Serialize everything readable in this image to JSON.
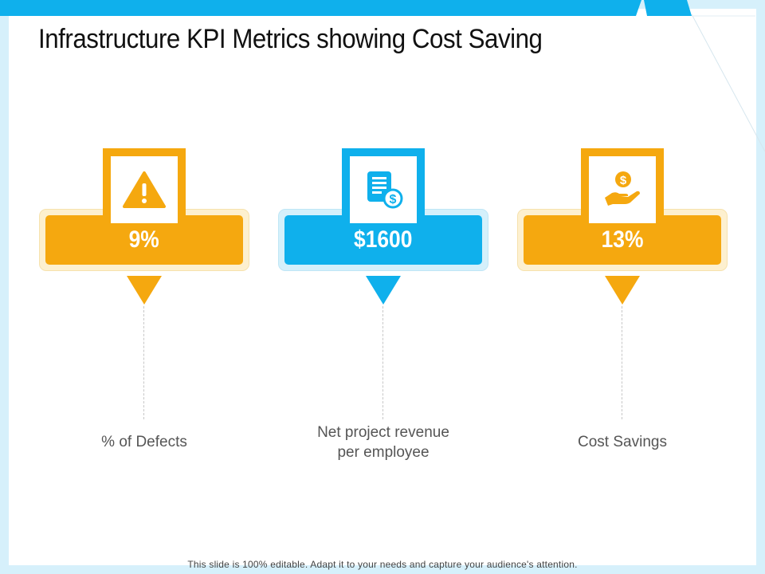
{
  "slide": {
    "title": "Infrastructure KPI Metrics showing Cost Saving",
    "footer": "This slide is 100% editable. Adapt it to your needs and capture your audience's attention.",
    "colors": {
      "orange": "#f5a80f",
      "orange_light": "#fdf0cf",
      "blue": "#0fb0ec",
      "blue_light": "#d4f0fb",
      "frame": "#d6f0fb"
    }
  },
  "kpis": [
    {
      "value": "9%",
      "label_line1": "% of Defects",
      "label_line2": "",
      "icon": "warning-icon",
      "color": "orange"
    },
    {
      "value": "$1600",
      "label_line1": "Net project revenue",
      "label_line2": "per employee",
      "icon": "revenue-document-icon",
      "color": "blue"
    },
    {
      "value": "13%",
      "label_line1": "Cost Savings",
      "label_line2": "",
      "icon": "money-hand-icon",
      "color": "orange"
    }
  ]
}
